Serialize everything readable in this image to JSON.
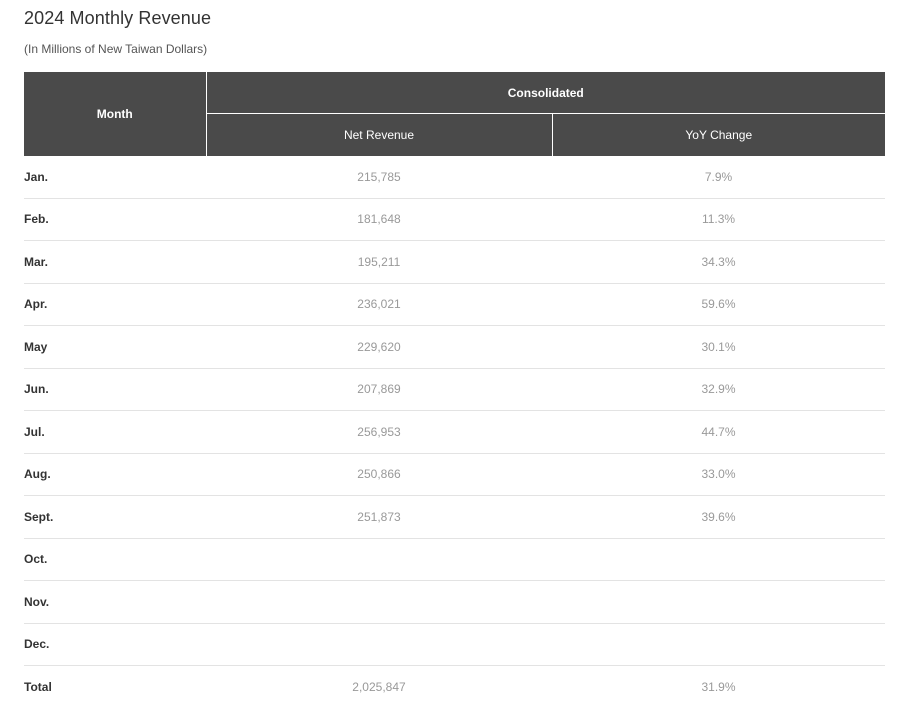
{
  "title": "2024 Monthly Revenue",
  "subtitle": "(In Millions of New Taiwan Dollars)",
  "table": {
    "headers": {
      "month": "Month",
      "group": "Consolidated",
      "net_revenue": "Net Revenue",
      "yoy_change": "YoY Change"
    },
    "rows": [
      {
        "month": "Jan.",
        "net_revenue": "215,785",
        "yoy_change": "7.9%"
      },
      {
        "month": "Feb.",
        "net_revenue": "181,648",
        "yoy_change": "11.3%"
      },
      {
        "month": "Mar.",
        "net_revenue": "195,211",
        "yoy_change": "34.3%"
      },
      {
        "month": "Apr.",
        "net_revenue": "236,021",
        "yoy_change": "59.6%"
      },
      {
        "month": "May",
        "net_revenue": "229,620",
        "yoy_change": "30.1%"
      },
      {
        "month": "Jun.",
        "net_revenue": "207,869",
        "yoy_change": "32.9%"
      },
      {
        "month": "Jul.",
        "net_revenue": "256,953",
        "yoy_change": "44.7%"
      },
      {
        "month": "Aug.",
        "net_revenue": "250,866",
        "yoy_change": "33.0%"
      },
      {
        "month": "Sept.",
        "net_revenue": "251,873",
        "yoy_change": "39.6%"
      },
      {
        "month": "Oct.",
        "net_revenue": "",
        "yoy_change": ""
      },
      {
        "month": "Nov.",
        "net_revenue": "",
        "yoy_change": ""
      },
      {
        "month": "Dec.",
        "net_revenue": "",
        "yoy_change": ""
      },
      {
        "month": "Total",
        "net_revenue": "2,025,847",
        "yoy_change": "31.9%"
      }
    ]
  },
  "colors": {
    "header_bg": "#4a4a4a",
    "header_text": "#ffffff",
    "label_text": "#333333",
    "value_text": "#999999",
    "row_divider": "#e3e3e3"
  }
}
